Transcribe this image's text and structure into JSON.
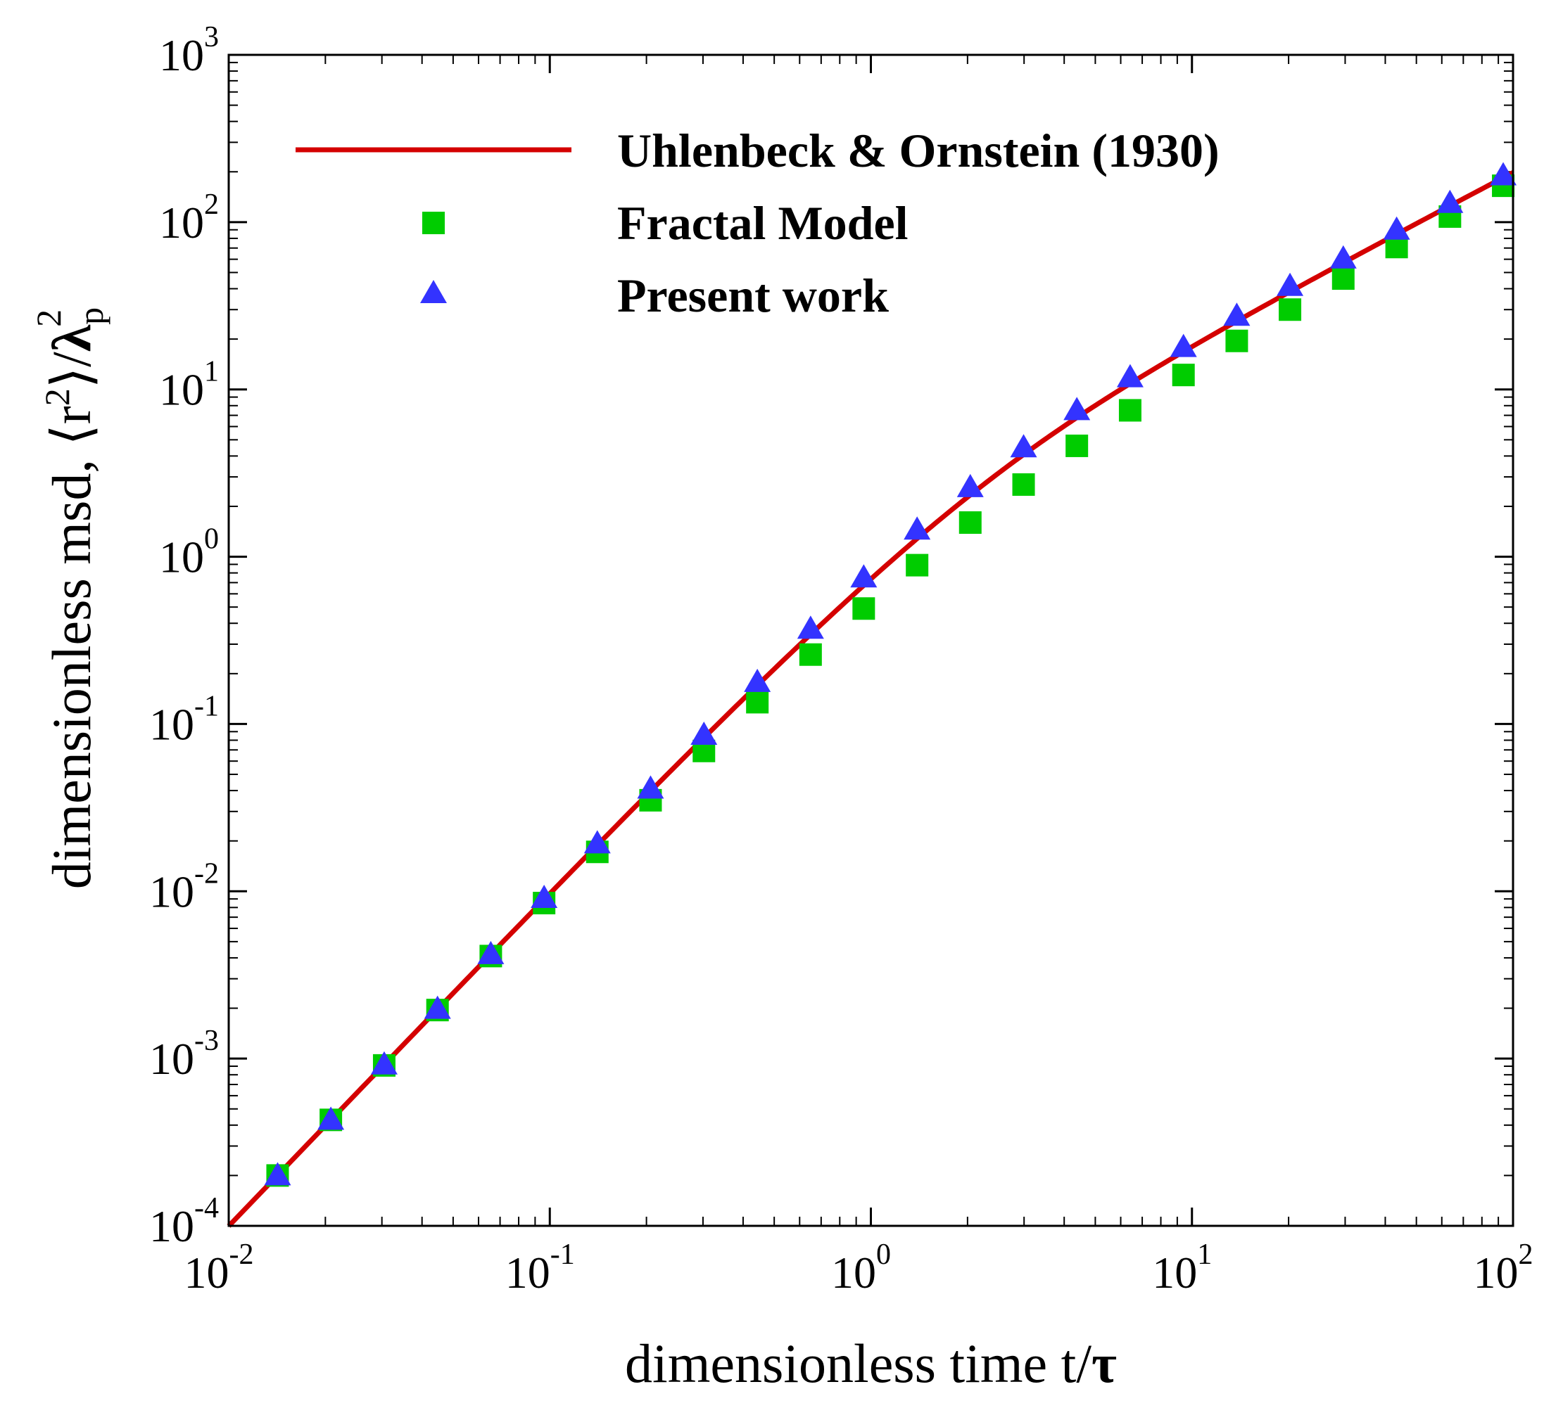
{
  "chart_data": {
    "type": "scatter",
    "scale": "log-log",
    "xlabel_main": "dimensionless time t/",
    "xlabel_symbol": "τ",
    "ylabel_main": "dimensionless msd, ",
    "ylabel_open": "⟨",
    "ylabel_r": "r",
    "ylabel_r_exp": "2",
    "ylabel_close": "⟩/",
    "ylabel_lambda": "λ",
    "ylabel_lambda_sub": "p",
    "ylabel_lambda_exp": "2",
    "xlim": [
      0.01,
      100
    ],
    "ylim": [
      0.0001,
      1000
    ],
    "x_ticks": [
      {
        "value": 0.01,
        "base": "10",
        "exp": "-2"
      },
      {
        "value": 0.1,
        "base": "10",
        "exp": "-1"
      },
      {
        "value": 1,
        "base": "10",
        "exp": "0"
      },
      {
        "value": 10,
        "base": "10",
        "exp": "1"
      },
      {
        "value": 100,
        "base": "10",
        "exp": "2"
      }
    ],
    "y_ticks": [
      {
        "value": 0.0001,
        "base": "10",
        "exp": "-4"
      },
      {
        "value": 0.001,
        "base": "10",
        "exp": "-3"
      },
      {
        "value": 0.01,
        "base": "10",
        "exp": "-2"
      },
      {
        "value": 0.1,
        "base": "10",
        "exp": "-1"
      },
      {
        "value": 1,
        "base": "10",
        "exp": "0"
      },
      {
        "value": 10,
        "base": "10",
        "exp": "1"
      },
      {
        "value": 100,
        "base": "10",
        "exp": "2"
      },
      {
        "value": 1000,
        "base": "10",
        "exp": "3"
      }
    ],
    "legend": {
      "position": "top",
      "entries": [
        {
          "label": "Uhlenbeck & Ornstein (1930)",
          "marker": "line",
          "color": "#d40000"
        },
        {
          "label": "Fractal Model",
          "marker": "square",
          "color": "#00cc00"
        },
        {
          "label": "Present work",
          "marker": "triangle",
          "color": "#3333ff"
        }
      ]
    },
    "series": [
      {
        "name": "Uhlenbeck & Ornstein (1930)",
        "kind": "line",
        "color": "#d40000",
        "formula": "2*(t - 1 + exp(-t))",
        "x_range": [
          0.01,
          100
        ]
      },
      {
        "name": "Fractal Model",
        "kind": "marker",
        "marker": "square",
        "color": "#00cc00",
        "x": [
          0.0142,
          0.0208,
          0.0305,
          0.0447,
          0.0655,
          0.096,
          0.1406,
          0.206,
          0.302,
          0.443,
          0.649,
          0.95,
          1.393,
          2.04,
          2.99,
          4.38,
          6.42,
          9.41,
          13.79,
          20.2,
          29.6,
          43.4,
          63.6,
          93.2
        ],
        "y": [
          0.0002,
          0.00043,
          0.00091,
          0.00195,
          0.0041,
          0.0085,
          0.0172,
          0.035,
          0.069,
          0.135,
          0.26,
          0.49,
          0.89,
          1.6,
          2.7,
          4.6,
          7.5,
          12.2,
          19.5,
          30,
          46,
          71,
          108,
          165
        ]
      },
      {
        "name": "Present work",
        "kind": "marker",
        "marker": "triangle",
        "color": "#3333ff",
        "x": [
          0.0142,
          0.0208,
          0.0305,
          0.0447,
          0.0655,
          0.096,
          0.1406,
          0.206,
          0.302,
          0.443,
          0.649,
          0.95,
          1.393,
          2.04,
          2.99,
          4.38,
          6.42,
          9.41,
          13.79,
          20.2,
          29.6,
          43.4,
          63.6,
          93.2
        ],
        "y": [
          0.0002,
          0.00043,
          0.00092,
          0.00198,
          0.0042,
          0.0091,
          0.0193,
          0.041,
          0.086,
          0.178,
          0.37,
          0.75,
          1.45,
          2.6,
          4.5,
          7.5,
          11.8,
          17.9,
          27.5,
          41.5,
          60.5,
          90,
          130,
          190
        ]
      }
    ]
  }
}
